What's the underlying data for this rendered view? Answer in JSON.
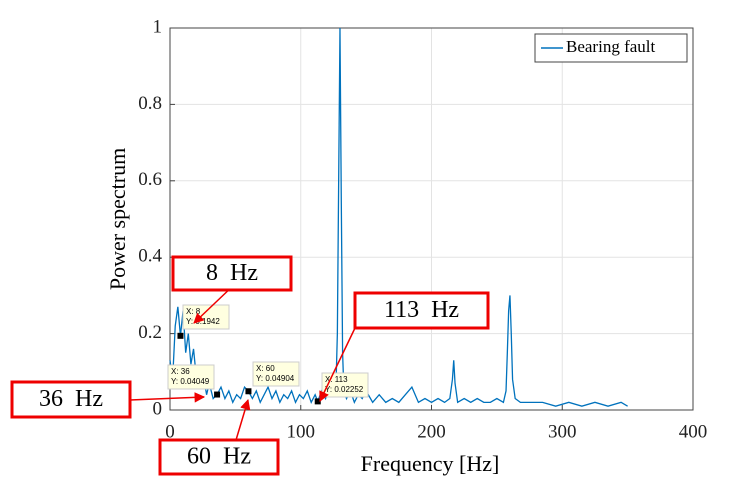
{
  "chart_data": {
    "type": "line",
    "xlabel": "Frequency [Hz]",
    "ylabel": "Power spectrum",
    "xlim": [
      0,
      400
    ],
    "xticks": [
      0,
      100,
      200,
      300,
      400
    ],
    "ylim": [
      0,
      1
    ],
    "yticks": [
      0,
      0.2,
      0.4,
      0.6,
      0.8,
      1
    ],
    "grid": true,
    "legend": "top-right",
    "series": [
      {
        "name": "Bearing fault",
        "color": "#0072bd",
        "x": [
          0,
          2,
          4,
          6,
          8,
          10,
          12,
          14,
          16,
          18,
          20,
          22,
          24,
          26,
          28,
          30,
          33,
          36,
          39,
          42,
          45,
          48,
          51,
          54,
          57,
          60,
          63,
          66,
          69,
          72,
          75,
          78,
          81,
          84,
          87,
          90,
          93,
          96,
          99,
          102,
          105,
          108,
          111,
          113,
          116,
          119,
          122,
          125,
          127,
          128,
          129,
          130,
          131,
          132,
          133,
          135,
          138,
          141,
          144,
          147,
          150,
          155,
          160,
          165,
          170,
          175,
          180,
          185,
          190,
          195,
          200,
          205,
          210,
          214,
          216,
          217,
          218,
          220,
          225,
          230,
          235,
          240,
          245,
          250,
          255,
          257,
          258,
          259,
          260,
          261,
          262,
          264,
          268,
          275,
          285,
          295,
          305,
          315,
          325,
          335,
          345,
          350
        ],
        "values": [
          0.13,
          0.08,
          0.22,
          0.27,
          0.1942,
          0.26,
          0.15,
          0.2,
          0.12,
          0.16,
          0.09,
          0.11,
          0.06,
          0.08,
          0.04,
          0.07,
          0.03,
          0.04049,
          0.06,
          0.03,
          0.05,
          0.02,
          0.04,
          0.03,
          0.06,
          0.04904,
          0.03,
          0.05,
          0.02,
          0.04,
          0.06,
          0.03,
          0.05,
          0.02,
          0.04,
          0.03,
          0.05,
          0.02,
          0.04,
          0.03,
          0.05,
          0.02,
          0.04,
          0.02252,
          0.05,
          0.03,
          0.06,
          0.04,
          0.07,
          0.2,
          0.6,
          1,
          0.55,
          0.15,
          0.05,
          0.03,
          0.05,
          0.02,
          0.04,
          0.03,
          0.05,
          0.02,
          0.04,
          0.02,
          0.03,
          0.02,
          0.04,
          0.06,
          0.02,
          0.03,
          0.02,
          0.03,
          0.02,
          0.03,
          0.08,
          0.13,
          0.07,
          0.02,
          0.03,
          0.02,
          0.03,
          0.02,
          0.02,
          0.03,
          0.02,
          0.05,
          0.15,
          0.26,
          0.3,
          0.2,
          0.08,
          0.03,
          0.02,
          0.02,
          0.02,
          0.01,
          0.02,
          0.01,
          0.02,
          0.01,
          0.02,
          0.01
        ]
      }
    ],
    "datatips": [
      {
        "x": 8,
        "y": 0.1942,
        "x_label": "X: 8",
        "y_label": "Y: 0.1942"
      },
      {
        "x": 36,
        "y": 0.04049,
        "x_label": "X: 36",
        "y_label": "Y: 0.04049"
      },
      {
        "x": 60,
        "y": 0.04904,
        "x_label": "X: 60",
        "y_label": "Y: 0.04904"
      },
      {
        "x": 113,
        "y": 0.02252,
        "x_label": "X: 113",
        "y_label": "Y: 0.02252"
      }
    ],
    "annotations": [
      "8  Hz",
      "36  Hz",
      "60  Hz",
      "113  Hz"
    ]
  }
}
